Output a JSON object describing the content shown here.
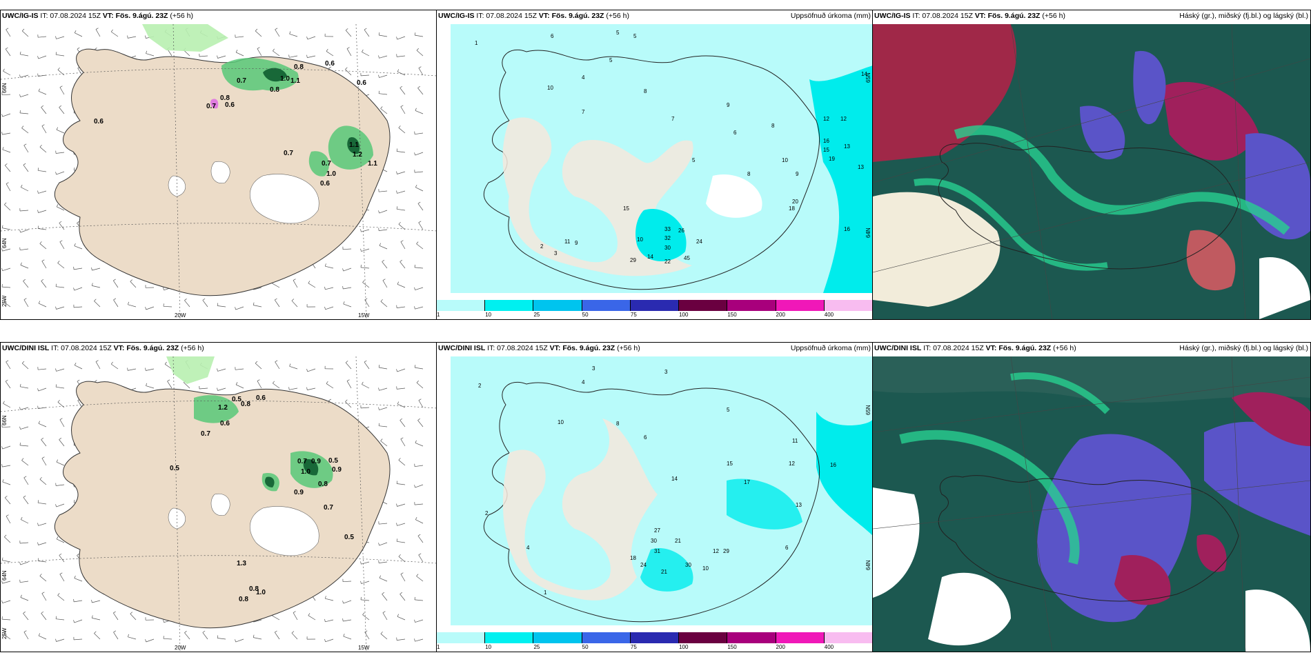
{
  "top_row": {
    "wind_panel": {
      "model": "UWC/IG-IS",
      "issue": "IT: 07.08.2024 15Z",
      "valid_label": "VT:",
      "valid": "Fös. 9.ágú. 23Z",
      "lead": "(+56 h)",
      "lon_labels": [
        "20W",
        "15W"
      ],
      "lat_labels": [
        "66N",
        "64N",
        "25W"
      ],
      "values": [
        "0.6",
        "0.8",
        "1.0",
        "0.7",
        "0.8",
        "0.7",
        "0.6",
        "0.6",
        "0.7",
        "0.7",
        "1.0",
        "0.6",
        "1.1",
        "1.1",
        "1.2",
        "0.8",
        "1.1",
        "0.6"
      ]
    },
    "precip_panel": {
      "model": "UWC/IG-IS",
      "issue": "IT: 07.08.2024 15Z",
      "valid_label": "VT:",
      "valid": "Fös. 9.ágú. 23Z",
      "lead": "(+56 h)",
      "right_title": "Uppsöfnuð úrkoma (mm)",
      "lat_labels": [
        "65N",
        "64N"
      ],
      "values": [
        "6",
        "5",
        "5",
        "1",
        "4",
        "5",
        "10",
        "8",
        "7",
        "9",
        "8",
        "10",
        "9",
        "12",
        "14",
        "12",
        "16",
        "13",
        "15",
        "19",
        "13",
        "20",
        "18",
        "16",
        "33",
        "26",
        "32",
        "30",
        "24",
        "29",
        "14",
        "22",
        "45",
        "11",
        "9",
        "15",
        "10",
        "2",
        "3",
        "7",
        "5",
        "8",
        "6"
      ]
    },
    "cloud_panel": {
      "model": "UWC/IG-IS",
      "issue": "IT: 07.08.2024 15Z",
      "valid_label": "VT:",
      "valid": "Fös. 9.ágú. 23Z",
      "lead": "(+56 h)",
      "right_title": "Háský (gr.), miðský (fj.bl.) og lágský (bl.)"
    }
  },
  "bottom_row": {
    "wind_panel": {
      "model": "UWC/DINI ISL",
      "issue": "IT: 07.08.2024 15Z",
      "valid_label": "VT:",
      "valid": "Fös. 9.ágú. 23Z",
      "lead": "(+56 h)",
      "lon_labels": [
        "20W",
        "15W"
      ],
      "lat_labels": [
        "66N",
        "64N",
        "25W"
      ],
      "values": [
        "0.5",
        "0.8",
        "0.6",
        "1.2",
        "0.7",
        "0.6",
        "0.5",
        "0.7",
        "0.9",
        "0.5",
        "0.9",
        "1.0",
        "0.8",
        "0.9",
        "0.7",
        "0.5",
        "1.3",
        "0.8",
        "1.0",
        "0.8"
      ]
    },
    "precip_panel": {
      "model": "UWC/DINI ISL",
      "issue": "IT: 07.08.2024 15Z",
      "valid_label": "VT:",
      "valid": "Fös. 9.ágú. 23Z",
      "lead": "(+56 h)",
      "right_title": "Uppsöfnuð úrkoma (mm)",
      "lat_labels": [
        "65N",
        "64N"
      ],
      "values": [
        "3",
        "2",
        "4",
        "3",
        "10",
        "8",
        "6",
        "5",
        "14",
        "15",
        "17",
        "16",
        "12",
        "13",
        "11",
        "27",
        "30",
        "31",
        "21",
        "24",
        "30",
        "18",
        "21",
        "10",
        "12",
        "29",
        "6",
        "1",
        "4",
        "2"
      ]
    },
    "cloud_panel": {
      "model": "UWC/DINI ISL",
      "issue": "IT: 07.08.2024 15Z",
      "valid_label": "VT:",
      "valid": "Fös. 9.ágú. 23Z",
      "lead": "(+56 h)",
      "right_title": "Háský (gr.), miðský (fj.bl.) og lágský (bl.)"
    }
  },
  "colorbar": {
    "ticks": [
      "1",
      "10",
      "25",
      "50",
      "75",
      "100",
      "150",
      "200",
      "400"
    ],
    "colors": [
      "#b8fbfa",
      "#00f0f0",
      "#00c4ee",
      "#3a66e8",
      "#2a2ab0",
      "#6a0040",
      "#a8007c",
      "#f018b8",
      "#f8bcf0"
    ]
  },
  "colors": {
    "land": "#ecdcc8",
    "wind_light": "#b8f0b0",
    "wind_mid": "#58c878",
    "wind_dark": "#186838",
    "precip_cyan_light": "#b8fbfa",
    "precip_cyan": "#00ecec",
    "cloud_high": "#1c5850",
    "cloud_mid": "#5a54c8",
    "cloud_low": "#b0284c",
    "cloud_green": "#28d090"
  }
}
